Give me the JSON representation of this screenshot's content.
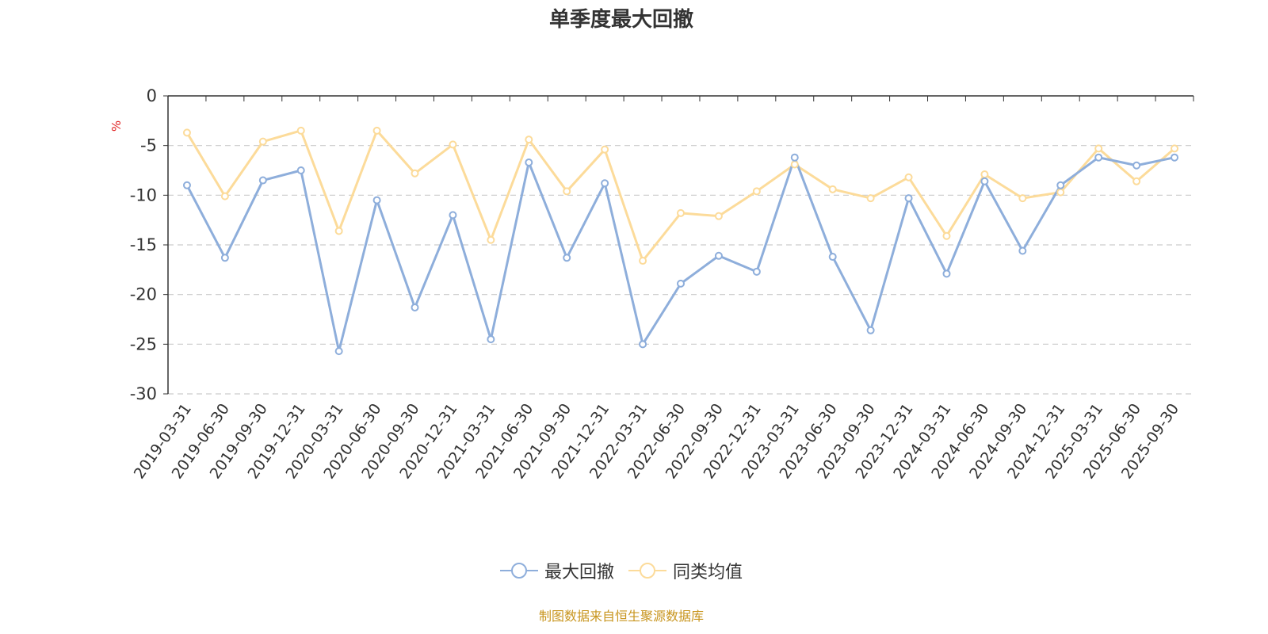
{
  "chart_data": {
    "type": "line",
    "title": "单季度最大回撤",
    "ylabel": "%",
    "ylim": [
      -30,
      0
    ],
    "yticks": [
      0,
      -5,
      -10,
      -15,
      -20,
      -25,
      -30
    ],
    "grid": true,
    "legend_position": "bottom",
    "categories": [
      "2019-03-31",
      "2019-06-30",
      "2019-09-30",
      "2019-12-31",
      "2020-03-31",
      "2020-06-30",
      "2020-09-30",
      "2020-12-31",
      "2021-03-31",
      "2021-06-30",
      "2021-09-30",
      "2021-12-31",
      "2022-03-31",
      "2022-06-30",
      "2022-09-30",
      "2022-12-31",
      "2023-03-31",
      "2023-06-30",
      "2023-09-30",
      "2023-12-31",
      "2024-03-31",
      "2024-06-30",
      "2024-09-30",
      "2024-12-31",
      "2025-03-31",
      "2025-06-30",
      "2025-09-30"
    ],
    "series": [
      {
        "name": "最大回撤",
        "color": "#8eaedb",
        "values": [
          -9.0,
          -16.3,
          -8.5,
          -7.5,
          -25.7,
          -10.5,
          -21.3,
          -12.0,
          -24.5,
          -6.7,
          -16.3,
          -8.8,
          -25.0,
          -18.9,
          -16.1,
          -17.7,
          -6.2,
          -16.2,
          -23.6,
          -10.3,
          -17.9,
          -8.6,
          -15.6,
          -9.0,
          -6.2,
          -7.0,
          -6.2
        ]
      },
      {
        "name": "同类均值",
        "color": "#fcdb9a",
        "values": [
          -3.7,
          -10.1,
          -4.6,
          -3.5,
          -13.6,
          -3.5,
          -7.8,
          -4.9,
          -14.5,
          -4.4,
          -9.6,
          -5.4,
          -16.6,
          -11.8,
          -12.1,
          -9.6,
          -6.9,
          -9.4,
          -10.3,
          -8.2,
          -14.1,
          -7.9,
          -10.3,
          -9.7,
          -5.3,
          -8.6,
          -5.3
        ]
      }
    ],
    "source": "制图数据来自恒生聚源数据库"
  }
}
